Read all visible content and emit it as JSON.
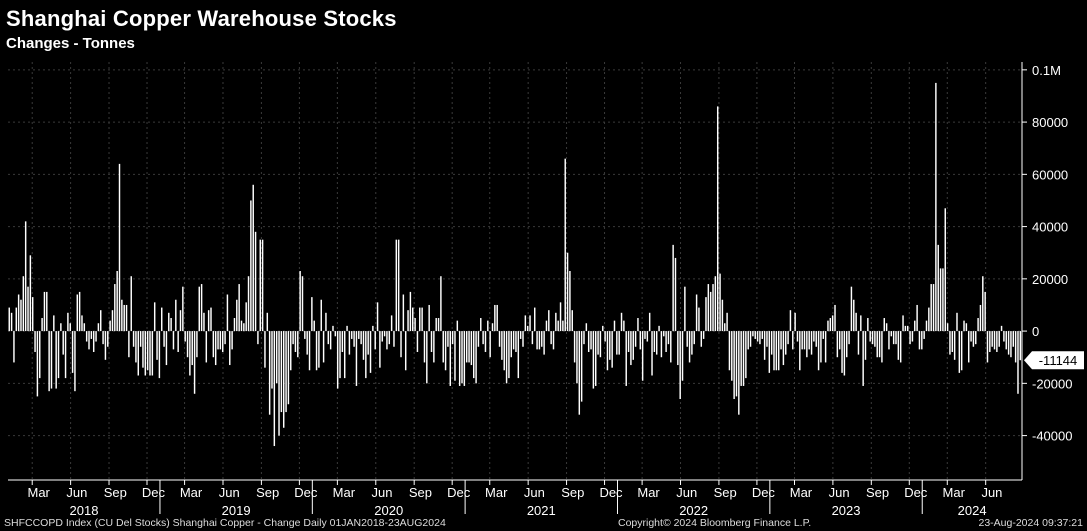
{
  "header": {
    "title": "Shanghai Copper Warehouse Stocks",
    "subtitle": "Changes - Tonnes"
  },
  "footer": {
    "source": "SHFCCOPD Index (CU Del Stocks) Shanghai Copper - Change  Daily 01JAN2018-23AUG2024",
    "copyright": "Copyright© 2024 Bloomberg Finance L.P.",
    "timestamp": "23-Aug-2024 09:37:21"
  },
  "colors": {
    "background": "#000000",
    "bars": "#ffffff",
    "grid": "#3a3a3a"
  },
  "chart_data": {
    "type": "bar",
    "title": "Shanghai Copper Warehouse Stocks",
    "subtitle": "Changes - Tonnes",
    "ylim": [
      -57000,
      103000
    ],
    "y_ticks": [
      {
        "value": 100000,
        "label": "0.1M"
      },
      {
        "value": 80000,
        "label": "80000"
      },
      {
        "value": 60000,
        "label": "60000"
      },
      {
        "value": 40000,
        "label": "40000"
      },
      {
        "value": 20000,
        "label": "20000"
      },
      {
        "value": 0,
        "label": "0"
      },
      {
        "value": -20000,
        "label": "-20000"
      },
      {
        "value": -40000,
        "label": "-40000"
      }
    ],
    "last_value": -11144,
    "last_value_label": "-11144",
    "x_month_labels": [
      "Mar",
      "Jun",
      "Sep",
      "Dec",
      "Mar",
      "Jun",
      "Sep",
      "Dec",
      "Mar",
      "Jun",
      "Sep",
      "Dec",
      "Mar",
      "Jun",
      "Sep",
      "Dec",
      "Mar",
      "Jun",
      "Sep",
      "Dec",
      "Mar",
      "Jun",
      "Sep",
      "Dec",
      "Mar",
      "Jun"
    ],
    "x_year_labels": [
      "2018",
      "2019",
      "2020",
      "2021",
      "2022",
      "2023",
      "2024"
    ],
    "x_start": "2018-01-05",
    "x_end": "2024-08-23",
    "frequency": "weekly",
    "grid": true,
    "values": [
      9000,
      7000,
      -12000,
      9000,
      14000,
      12000,
      21000,
      42000,
      17000,
      29000,
      13000,
      -8000,
      -25000,
      -18000,
      5000,
      15000,
      15000,
      -23000,
      -22000,
      6000,
      -22000,
      -18000,
      3000,
      -9000,
      -18000,
      7000,
      3000,
      -16000,
      -23000,
      14000,
      15000,
      6000,
      3000,
      -4000,
      -7000,
      -3000,
      -8000,
      -4000,
      3000,
      8000,
      -5000,
      -11000,
      -6000,
      4000,
      8000,
      18000,
      23000,
      64000,
      12000,
      10000,
      10000,
      -10000,
      21000,
      -6000,
      -12000,
      -17000,
      -6000,
      -14000,
      -17000,
      -15000,
      -17000,
      -17000,
      11000,
      -11000,
      -18000,
      9000,
      -6000,
      -13000,
      7000,
      5000,
      -7000,
      12000,
      -8000,
      8000,
      17000,
      -4000,
      -10000,
      -17000,
      -13000,
      -24000,
      -10000,
      17000,
      18000,
      7000,
      -12000,
      8000,
      9000,
      -10000,
      -13000,
      -7000,
      -7000,
      -8000,
      -5000,
      14000,
      -13000,
      -7000,
      5000,
      12000,
      18000,
      4000,
      3000,
      11000,
      21000,
      50000,
      56000,
      38000,
      -5000,
      35000,
      35000,
      -14000,
      7000,
      -32000,
      -22000,
      -44000,
      -20000,
      -40000,
      -31000,
      -37000,
      -31000,
      -28000,
      -15000,
      -5000,
      -8000,
      -10000,
      23000,
      21000,
      -3000,
      -9000,
      -15000,
      13000,
      4000,
      -15000,
      -14000,
      12000,
      -12000,
      7000,
      -5000,
      -7000,
      2000,
      -2000,
      -22000,
      -18000,
      -8000,
      -18000,
      2000,
      -9000,
      -3000,
      -6000,
      -21000,
      -3000,
      -5000,
      -11000,
      -18000,
      -9000,
      -16000,
      2000,
      -7000,
      11000,
      -14000,
      -4000,
      -2000,
      -7000,
      -5000,
      6000,
      -6000,
      35000,
      35000,
      -10000,
      14000,
      -15000,
      8000,
      15000,
      9000,
      5000,
      -8000,
      9000,
      9000,
      -12000,
      -20000,
      10000,
      -8000,
      -12000,
      5000,
      5000,
      21000,
      -12000,
      -15000,
      -6000,
      -21000,
      -5000,
      -19000,
      4000,
      -21000,
      -20000,
      -21000,
      -12000,
      -12000,
      -13000,
      -18000,
      -20000,
      -6000,
      5000,
      -5000,
      -8000,
      4000,
      -10000,
      3000,
      10000,
      10000,
      -6000,
      -11000,
      -15000,
      -20000,
      -18000,
      -10000,
      -7000,
      -8000,
      -18000,
      -3000,
      -6000,
      6000,
      2000,
      6000,
      -5000,
      9000,
      -7000,
      -7000,
      -6000,
      -9000,
      4000,
      8000,
      -5000,
      -7000,
      7000,
      4000,
      11000,
      4000,
      66000,
      30000,
      23000,
      8000,
      -12000,
      -20000,
      -32000,
      -27000,
      -5000,
      3000,
      -8000,
      -7000,
      -22000,
      -21000,
      -9000,
      -10000,
      2000,
      -4000,
      -15000,
      -11000,
      -14000,
      4000,
      -9000,
      -9000,
      7000,
      4000,
      -21000,
      -8000,
      -13000,
      -11000,
      -6000,
      5000,
      -7000,
      -19000,
      -3000,
      -4000,
      7000,
      -17000,
      -8000,
      -9000,
      2000,
      -10000,
      -2000,
      -8000,
      -5000,
      -12000,
      33000,
      28000,
      -13000,
      -26000,
      -19000,
      17000,
      -6000,
      -12000,
      -9000,
      -5000,
      14000,
      9000,
      -6000,
      -3000,
      13000,
      18000,
      15000,
      18000,
      21000,
      86000,
      22000,
      12000,
      3000,
      7000,
      -15000,
      -19000,
      -26000,
      -25000,
      -32000,
      -21000,
      -21000,
      -18000,
      -7000,
      -6000,
      -2000,
      -3000,
      -4000,
      -5000,
      -3000,
      -11000,
      -6000,
      -16000,
      -9000,
      -15000,
      -15000,
      -15000,
      -7000,
      -13000,
      -9000,
      -5000,
      8000,
      -7000,
      7000,
      -4000,
      -15000,
      -7000,
      -7000,
      -10000,
      -7000,
      -9000,
      -4000,
      -6000,
      -15000,
      -12000,
      -3000,
      -12000,
      4000,
      5000,
      6000,
      10000,
      -10000,
      -7000,
      -16000,
      -17000,
      -10000,
      -5000,
      17000,
      12000,
      7000,
      -9000,
      6000,
      -21000,
      -11000,
      5000,
      -4000,
      -5000,
      -6000,
      -10000,
      -10000,
      -12000,
      5000,
      3000,
      -7000,
      -2000,
      -5000,
      -5000,
      -11000,
      -12000,
      6000,
      2000,
      2000,
      -5000,
      -4000,
      4000,
      10000,
      -7000,
      -7000,
      -3000,
      4000,
      9000,
      18000,
      18000,
      95000,
      33000,
      24000,
      24000,
      47000,
      3000,
      -9000,
      -8000,
      -11000,
      7000,
      -16000,
      -15000,
      4000,
      3000,
      -12000,
      -4000,
      -6000,
      -5000,
      5000,
      10000,
      21000,
      15000,
      -12000,
      -8000,
      -6000,
      -7000,
      -8000,
      -6000,
      2000,
      -4000,
      -7000,
      -9000,
      -10000,
      -6000,
      -12000,
      -24000,
      -11144
    ]
  }
}
